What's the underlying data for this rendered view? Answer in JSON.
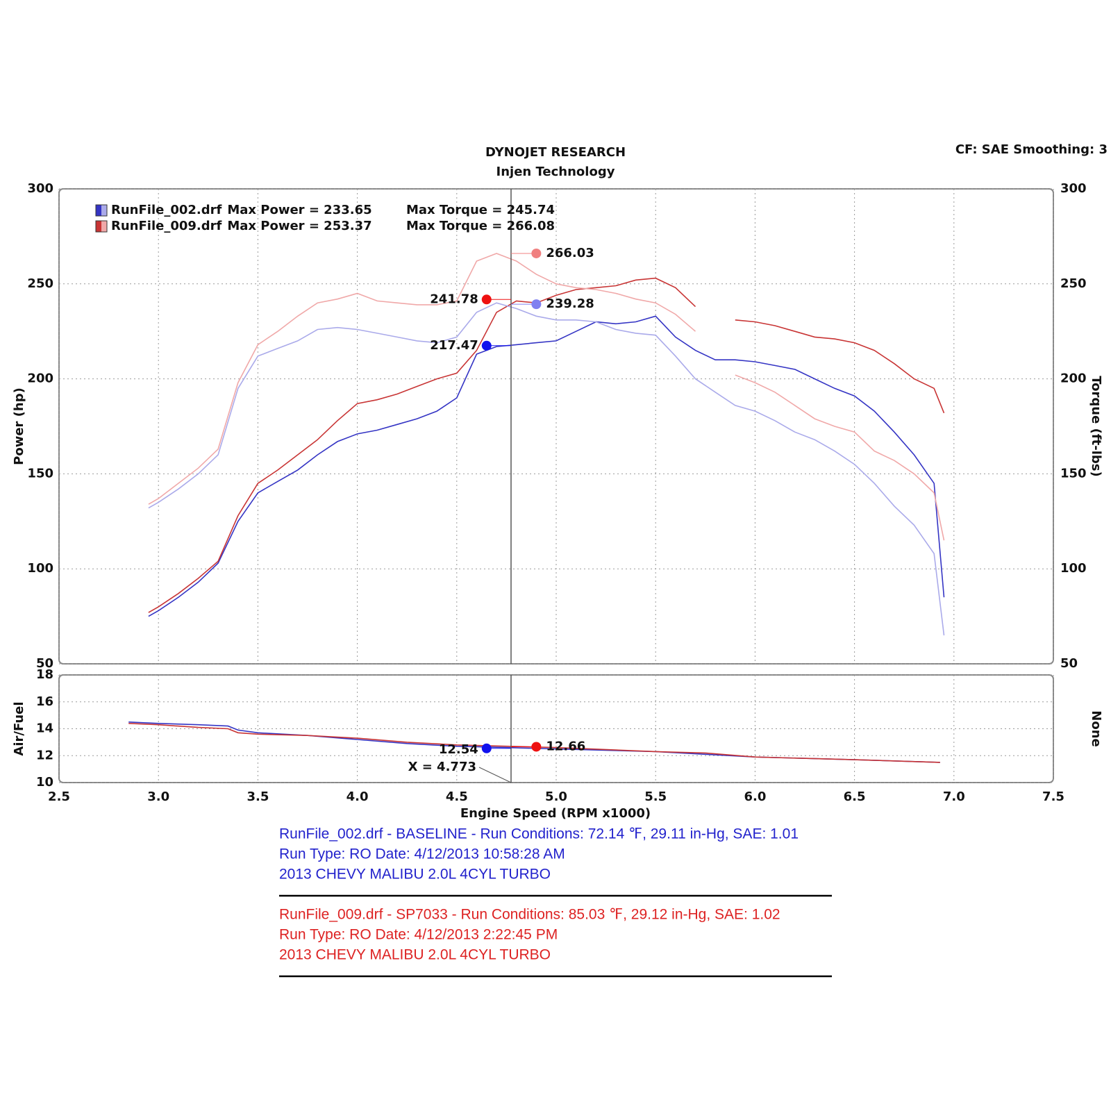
{
  "header": {
    "title": "DYNOJET RESEARCH",
    "subtitle": "Injen Technology",
    "settings": "CF: SAE  Smoothing: 3"
  },
  "chart_data": [
    {
      "type": "line",
      "y_label": "Power (hp)",
      "y2_label": "Torque (ft-lbs)",
      "xlim": [
        2.5,
        7.5
      ],
      "ylim": [
        50,
        300
      ],
      "yticks": [
        50,
        100,
        150,
        200,
        250,
        300
      ],
      "y2lim": [
        50,
        300
      ],
      "y2ticks": [
        50,
        100,
        150,
        200,
        250,
        300
      ],
      "grid": true,
      "x": [
        2.95,
        3.0,
        3.1,
        3.2,
        3.3,
        3.4,
        3.5,
        3.6,
        3.7,
        3.8,
        3.9,
        4.0,
        4.1,
        4.2,
        4.3,
        4.4,
        4.5,
        4.6,
        4.7,
        4.8,
        4.9,
        5.0,
        5.1,
        5.2,
        5.3,
        5.4,
        5.5,
        5.6,
        5.7,
        5.8,
        5.9,
        6.0,
        6.1,
        6.2,
        6.3,
        6.4,
        6.5,
        6.6,
        6.7,
        6.8,
        6.9,
        6.95
      ],
      "series": [
        {
          "name": "RunFile_002.drf",
          "max_power_label": "Max Power = 233.65",
          "max_torque_label": "Max Torque = 245.74",
          "color": "#3434c4",
          "torque_color": "#aaaaea",
          "values": [
            75,
            78,
            85,
            93,
            103,
            125,
            140,
            146,
            152,
            160,
            167,
            171,
            173,
            176,
            179,
            183,
            190,
            213,
            217,
            218,
            219,
            220,
            225,
            230,
            229,
            230,
            233,
            222,
            215,
            210,
            210,
            209,
            207,
            205,
            200,
            195,
            191,
            183,
            172,
            160,
            145,
            85
          ]
        },
        {
          "name": "RunFile_009.drf",
          "max_power_label": "Max Power = 253.37",
          "max_torque_label": "Max Torque = 266.08",
          "color": "#c83434",
          "torque_color": "#f0a8a8",
          "values": [
            77,
            80,
            87,
            95,
            104,
            128,
            145,
            152,
            160,
            168,
            178,
            187,
            189,
            192,
            196,
            200,
            203,
            215,
            235,
            241,
            240,
            244,
            247,
            248,
            249,
            252,
            253,
            248,
            238,
            null,
            231,
            230,
            228,
            225,
            222,
            221,
            219,
            215,
            208,
            200,
            195,
            182
          ]
        },
        {
          "color": "#aaaaea",
          "axis": "y2",
          "values": [
            132,
            135,
            142,
            150,
            160,
            195,
            212,
            216,
            220,
            226,
            227,
            226,
            224,
            222,
            220,
            219,
            222,
            235,
            240,
            237,
            233,
            231,
            231,
            230,
            226,
            224,
            223,
            212,
            200,
            193,
            186,
            183,
            178,
            172,
            168,
            162,
            155,
            145,
            133,
            123,
            108,
            65
          ]
        },
        {
          "color": "#f0a8a8",
          "axis": "y2",
          "values": [
            134,
            137,
            145,
            153,
            163,
            198,
            218,
            225,
            233,
            240,
            242,
            245,
            241,
            240,
            239,
            239,
            241,
            262,
            266,
            262,
            255,
            250,
            248,
            247,
            245,
            242,
            240,
            234,
            225,
            null,
            202,
            198,
            193,
            186,
            179,
            175,
            172,
            162,
            157,
            150,
            140,
            115
          ]
        }
      ],
      "markers": [
        {
          "x": 4.9,
          "value": 266.03,
          "color": "#f08080",
          "axis": "y2"
        },
        {
          "x": 4.65,
          "value": 241.78,
          "color": "#ee1111"
        },
        {
          "x": 4.9,
          "value": 239.28,
          "color": "#8080f0",
          "axis": "y2"
        },
        {
          "x": 4.65,
          "value": 217.47,
          "color": "#1111ee"
        }
      ],
      "cursor_x": 4.773
    },
    {
      "type": "line",
      "y_label": "Air/Fuel",
      "y2_label": "None",
      "x_label": "Engine Speed (RPM x1000)",
      "xlim": [
        2.5,
        7.5
      ],
      "xticks": [
        {
          "value": 2.5,
          "label": "2.5"
        },
        {
          "value": 3,
          "label": "3.0"
        },
        {
          "value": 3.5,
          "label": "3.5"
        },
        {
          "value": 4,
          "label": "4.0"
        },
        {
          "value": 4.5,
          "label": "4.5"
        },
        {
          "value": 5,
          "label": "5.0"
        },
        {
          "value": 5.5,
          "label": "5.5"
        },
        {
          "value": 6,
          "label": "6.0"
        },
        {
          "value": 6.5,
          "label": "6.5"
        },
        {
          "value": 7,
          "label": "7.0"
        },
        {
          "value": 7.5,
          "label": "7.5"
        }
      ],
      "ylim": [
        10,
        18
      ],
      "yticks": [
        10,
        12,
        14,
        16,
        18
      ],
      "grid": true,
      "x": [
        2.85,
        3.0,
        3.2,
        3.35,
        3.4,
        3.5,
        3.75,
        4.0,
        4.25,
        4.5,
        4.75,
        5.0,
        5.5,
        5.75,
        6.0,
        6.5,
        6.93
      ],
      "series": [
        {
          "color": "#3434c4",
          "values": [
            14.5,
            14.4,
            14.3,
            14.2,
            13.9,
            13.7,
            13.5,
            13.2,
            12.9,
            12.7,
            12.6,
            12.5,
            12.3,
            12.1,
            11.9,
            11.7,
            11.5
          ]
        },
        {
          "color": "#c83434",
          "values": [
            14.4,
            14.3,
            14.1,
            14.0,
            13.7,
            13.6,
            13.5,
            13.3,
            13.0,
            12.8,
            12.7,
            12.6,
            12.3,
            12.2,
            11.9,
            11.7,
            11.5
          ]
        }
      ],
      "markers": [
        {
          "x": 4.65,
          "value": 12.54,
          "color": "#1111ee"
        },
        {
          "x": 4.9,
          "value": 12.66,
          "color": "#ee1111"
        }
      ],
      "cursor_x": 4.773,
      "cursor_label": "X = 4.773"
    }
  ],
  "footer": {
    "run1": [
      "RunFile_002.drf - BASELINE  -  Run Conditions: 72.14 ℉, 29.11 in-Hg, SAE: 1.01",
      "Run Type: RO  Date: 4/12/2013 10:58:28 AM",
      "2013 CHEVY MALIBU 2.0L 4CYL TURBO"
    ],
    "run2": [
      "RunFile_009.drf - SP7033  -  Run Conditions: 85.03 ℉, 29.12 in-Hg, SAE: 1.02",
      "Run Type: RO  Date: 4/12/2013 2:22:45 PM",
      "2013 CHEVY MALIBU 2.0L 4CYL TURBO"
    ]
  }
}
